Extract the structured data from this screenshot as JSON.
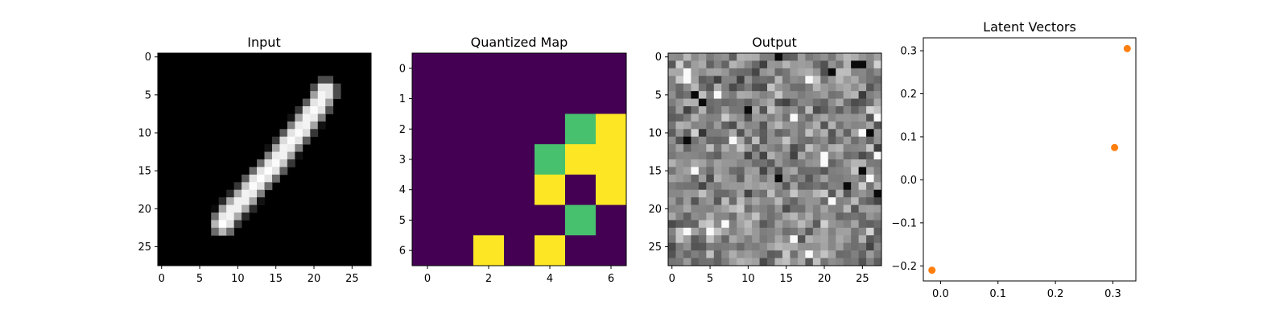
{
  "chart_data": [
    {
      "type": "heatmap",
      "title": "Input",
      "colormap": "gray",
      "shape": [
        28,
        28
      ],
      "x_ticks": [
        "0",
        "5",
        "10",
        "15",
        "20",
        "25"
      ],
      "y_ticks": [
        "0",
        "5",
        "10",
        "15",
        "20",
        "25"
      ],
      "stroke_points": [
        [
          21.5,
          4.5
        ],
        [
          20.5,
          6.5
        ],
        [
          19,
          8.5
        ],
        [
          17.5,
          10.5
        ],
        [
          16,
          12.5
        ],
        [
          14.5,
          14.5
        ],
        [
          12.5,
          16.5
        ],
        [
          11,
          18.5
        ],
        [
          9,
          20.5
        ],
        [
          8,
          22
        ]
      ],
      "stroke_halfwidth": 0.9
    },
    {
      "type": "heatmap",
      "title": "Quantized Map",
      "colormap": "viridis",
      "shape": [
        7,
        7
      ],
      "x_ticks": [
        "0",
        "2",
        "4",
        "6"
      ],
      "y_ticks": [
        "0",
        "1",
        "2",
        "3",
        "4",
        "5",
        "6"
      ],
      "values": [
        [
          0,
          0,
          0,
          0,
          0,
          0,
          0
        ],
        [
          0,
          0,
          0,
          0,
          0,
          0,
          0
        ],
        [
          0,
          0,
          0,
          0,
          0,
          1,
          2
        ],
        [
          0,
          0,
          0,
          0,
          1,
          2,
          2
        ],
        [
          0,
          0,
          0,
          0,
          2,
          0,
          2
        ],
        [
          0,
          0,
          0,
          0,
          0,
          1,
          0
        ],
        [
          0,
          0,
          2,
          0,
          2,
          0,
          0
        ]
      ],
      "value_colors": [
        "#440154",
        "#47c16e",
        "#fde725"
      ]
    },
    {
      "type": "heatmap",
      "title": "Output",
      "colormap": "gray",
      "shape": [
        28,
        28
      ],
      "pattern": "random-noise",
      "x_ticks": [
        "0",
        "5",
        "10",
        "15",
        "20",
        "25"
      ],
      "y_ticks": [
        "0",
        "5",
        "10",
        "15",
        "20",
        "25"
      ]
    },
    {
      "type": "scatter",
      "title": "Latent Vectors",
      "x": [
        -0.015,
        0.303,
        0.325
      ],
      "y": [
        -0.21,
        0.075,
        0.305
      ],
      "xlim": [
        -0.03,
        0.34
      ],
      "ylim": [
        -0.235,
        0.33
      ],
      "x_ticks": [
        0.0,
        0.1,
        0.2,
        0.3
      ],
      "x_tick_labels": [
        "0.0",
        "0.1",
        "0.2",
        "0.3"
      ],
      "y_ticks": [
        -0.2,
        -0.1,
        0.0,
        0.1,
        0.2,
        0.3
      ],
      "y_tick_labels": [
        "−0.2",
        "−0.1",
        "0.0",
        "0.1",
        "0.2",
        "0.3"
      ],
      "point_color": "#ff7f0e"
    }
  ]
}
